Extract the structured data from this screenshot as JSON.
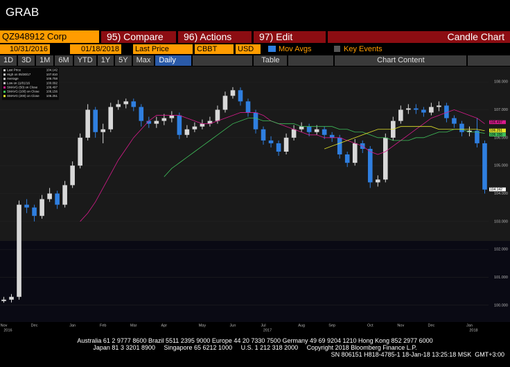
{
  "header": {
    "title": "GRAB"
  },
  "toolbar": {
    "security": "QZ948912 Corp",
    "buttons": [
      "95) Compare",
      "96) Actions",
      "97) Edit"
    ],
    "view": "Candle Chart",
    "start_date": "10/31/2016",
    "end_date": "01/18/2018",
    "field": "Last Price",
    "source": "CBBT",
    "currency": "USD",
    "mov_avgs": "Mov Avgs",
    "key_events": "Key Events",
    "periods": [
      "1D",
      "3D",
      "1M",
      "6M",
      "YTD",
      "1Y",
      "5Y",
      "Max"
    ],
    "frequency": "Daily",
    "table": "Table",
    "chart_content": "Chart Content"
  },
  "chart_data": {
    "type": "candlestick",
    "up_color": "#d8d8d8",
    "down_color": "#2f7fe0",
    "grid": true,
    "categories": [
      "Nov",
      null,
      null,
      null,
      "Dec",
      null,
      null,
      null,
      null,
      "Jan",
      null,
      null,
      null,
      "Feb",
      null,
      null,
      null,
      "Mar",
      null,
      null,
      null,
      "Apr",
      null,
      null,
      null,
      null,
      "May",
      null,
      null,
      null,
      "Jun",
      null,
      null,
      null,
      "Jul",
      null,
      null,
      null,
      null,
      "Aug",
      null,
      null,
      null,
      "Sep",
      null,
      null,
      null,
      null,
      "Oct",
      null,
      null,
      null,
      "Nov",
      null,
      null,
      null,
      "Dec",
      null,
      null,
      null,
      null,
      "Jan",
      null,
      null
    ],
    "year_labels": [
      "2016",
      "2017",
      "2018"
    ],
    "open": [
      100.15,
      100.2,
      100.3,
      103.6,
      103.5,
      103.2,
      103.8,
      104.0,
      103.6,
      104.3,
      105.0,
      106.0,
      107.0,
      106.2,
      106.3,
      107.1,
      107.2,
      107.3,
      107.1,
      106.6,
      106.5,
      106.6,
      106.7,
      106.8,
      106.1,
      106.3,
      106.4,
      106.5,
      106.6,
      107.0,
      107.5,
      107.7,
      107.3,
      106.9,
      106.3,
      105.9,
      105.8,
      105.5,
      106.0,
      106.3,
      106.4,
      106.2,
      106.3,
      106.1,
      106.0,
      105.4,
      105.1,
      105.8,
      105.6,
      104.4,
      104.5,
      106.0,
      106.6,
      107.0,
      107.05,
      107.0,
      106.9,
      107.1,
      107.15,
      106.7,
      106.5,
      106.2,
      106.25,
      105.8
    ],
    "high": [
      100.3,
      100.4,
      103.75,
      103.8,
      103.6,
      103.95,
      104.2,
      104.1,
      104.45,
      105.15,
      106.15,
      107.2,
      107.1,
      106.5,
      107.25,
      107.35,
      107.4,
      107.4,
      107.2,
      106.75,
      106.75,
      106.85,
      106.95,
      106.9,
      106.45,
      106.55,
      106.65,
      106.75,
      107.15,
      107.65,
      107.81,
      107.8,
      107.4,
      107.0,
      106.4,
      106.05,
      105.9,
      106.15,
      106.45,
      106.55,
      106.5,
      106.45,
      106.4,
      106.2,
      106.1,
      105.5,
      105.95,
      105.9,
      105.7,
      104.65,
      106.15,
      106.75,
      107.15,
      107.2,
      107.2,
      107.1,
      107.25,
      107.3,
      107.25,
      106.8,
      106.6,
      106.4,
      106.7,
      105.9
    ],
    "low": [
      100.09,
      100.1,
      100.2,
      103.3,
      103.0,
      103.1,
      103.7,
      103.45,
      103.5,
      104.2,
      104.9,
      105.9,
      106.0,
      105.8,
      106.2,
      107.0,
      107.05,
      106.95,
      106.4,
      106.35,
      106.35,
      106.45,
      106.55,
      105.95,
      106.0,
      106.2,
      106.3,
      106.4,
      106.5,
      106.9,
      107.4,
      107.15,
      106.75,
      106.15,
      105.75,
      105.65,
      105.35,
      105.4,
      105.9,
      106.2,
      106.05,
      106.1,
      105.95,
      105.85,
      105.25,
      104.95,
      105.0,
      105.45,
      104.2,
      104.25,
      104.4,
      105.9,
      106.5,
      106.85,
      106.85,
      106.75,
      106.8,
      106.95,
      106.55,
      106.35,
      106.05,
      106.05,
      105.65,
      104.0
    ],
    "close": [
      100.2,
      100.3,
      103.6,
      103.5,
      103.2,
      103.8,
      104.0,
      103.6,
      104.3,
      105.0,
      106.0,
      107.0,
      106.2,
      106.3,
      107.1,
      107.2,
      107.3,
      107.1,
      106.6,
      106.5,
      106.6,
      106.7,
      106.8,
      106.1,
      106.3,
      106.4,
      106.5,
      106.6,
      107.0,
      107.5,
      107.7,
      107.3,
      106.9,
      106.3,
      105.9,
      105.8,
      105.5,
      106.0,
      106.3,
      106.4,
      106.2,
      106.3,
      106.1,
      106.0,
      105.4,
      105.1,
      105.8,
      105.6,
      104.4,
      104.5,
      106.0,
      106.6,
      107.0,
      107.05,
      107.0,
      106.9,
      107.1,
      107.15,
      106.7,
      106.5,
      106.2,
      106.25,
      105.8,
      104.142
    ],
    "overlays": [
      {
        "name": "SMAVG (50) on Close",
        "color": "#d81b8c",
        "end_label": "106.497",
        "values": [
          null,
          null,
          null,
          null,
          null,
          null,
          null,
          null,
          null,
          null,
          103.0,
          103.3,
          103.7,
          104.2,
          104.7,
          105.2,
          105.6,
          106.0,
          106.3,
          106.6,
          106.8,
          106.8,
          106.8,
          106.8,
          106.7,
          106.6,
          106.5,
          106.5,
          106.6,
          106.7,
          106.8,
          106.9,
          106.9,
          106.9,
          106.8,
          106.6,
          106.5,
          106.4,
          106.3,
          106.2,
          106.1,
          106.1,
          106.0,
          106.0,
          106.0,
          105.9,
          105.8,
          105.7,
          105.5,
          105.4,
          105.5,
          105.7,
          105.9,
          106.1,
          106.3,
          106.5,
          106.7,
          106.8,
          106.9,
          107.0,
          106.9,
          106.8,
          106.7,
          106.5
        ]
      },
      {
        "name": "SMAVG (100) on Close",
        "color": "#3fbf5a",
        "end_label": "106.156",
        "values": [
          null,
          null,
          null,
          null,
          null,
          null,
          null,
          null,
          null,
          null,
          null,
          null,
          null,
          null,
          null,
          null,
          null,
          null,
          null,
          null,
          null,
          104.6,
          104.9,
          105.1,
          105.3,
          105.5,
          105.7,
          105.9,
          106.1,
          106.3,
          106.5,
          106.6,
          106.7,
          106.7,
          106.6,
          106.6,
          106.5,
          106.5,
          106.5,
          106.4,
          106.4,
          106.4,
          106.4,
          106.4,
          106.3,
          106.3,
          106.2,
          106.2,
          106.1,
          106.0,
          106.0,
          105.9,
          105.9,
          105.9,
          106.0,
          106.0,
          106.1,
          106.2,
          106.2,
          106.3,
          106.3,
          106.2,
          106.2,
          106.156
        ]
      },
      {
        "name": "SMAVG (200) on Close",
        "color": "#e6e62a",
        "end_label": "106.251",
        "values": [
          null,
          null,
          null,
          null,
          null,
          null,
          null,
          null,
          null,
          null,
          null,
          null,
          null,
          null,
          null,
          null,
          null,
          null,
          null,
          null,
          null,
          null,
          null,
          null,
          null,
          null,
          null,
          null,
          null,
          null,
          null,
          null,
          null,
          null,
          null,
          null,
          null,
          null,
          null,
          null,
          null,
          null,
          105.6,
          105.7,
          105.8,
          105.9,
          106.0,
          106.1,
          106.2,
          106.3,
          106.3,
          106.3,
          106.4,
          106.4,
          106.4,
          106.4,
          106.4,
          106.3,
          106.3,
          106.3,
          106.3,
          106.3,
          106.3,
          106.251
        ]
      }
    ],
    "stats": [
      {
        "label": "Last Price",
        "value_label": "104.142"
      },
      {
        "label": "High on 05/30/17",
        "value_label": "107.810"
      },
      {
        "label": "Average",
        "value_label": "105.758"
      },
      {
        "label": "Low on 11/01/16",
        "value_label": "100.092"
      }
    ],
    "last_label": "104.142",
    "ylim": [
      99.4,
      108.55
    ],
    "yticks": [
      {
        "value": 100,
        "label": "100.000"
      },
      {
        "value": 101,
        "label": "101.000"
      },
      {
        "value": 102,
        "label": "102.000"
      },
      {
        "value": 103,
        "label": "103.000"
      },
      {
        "value": 104,
        "label": "104.000"
      },
      {
        "value": 105,
        "label": "105.000"
      },
      {
        "value": 106,
        "label": "106.000"
      },
      {
        "value": 107,
        "label": "107.000"
      },
      {
        "value": 108,
        "label": "108.000"
      }
    ]
  },
  "footer": {
    "lines": [
      "Australia 61 2 9777 8600 Brazil 5511 2395 9000 Europe 44 20 7330 7500 Germany 49 69 9204 1210 Hong Kong 852 2977 6000",
      "Japan 81 3 3201 8900     Singapore 65 6212 1000     U.S. 1 212 318 2000     Copyright 2018 Bloomberg Finance L.P.",
      "SN 806151 H818-4785-1 18-Jan-18 13:25:18 MSK  GMT+3:00"
    ]
  }
}
